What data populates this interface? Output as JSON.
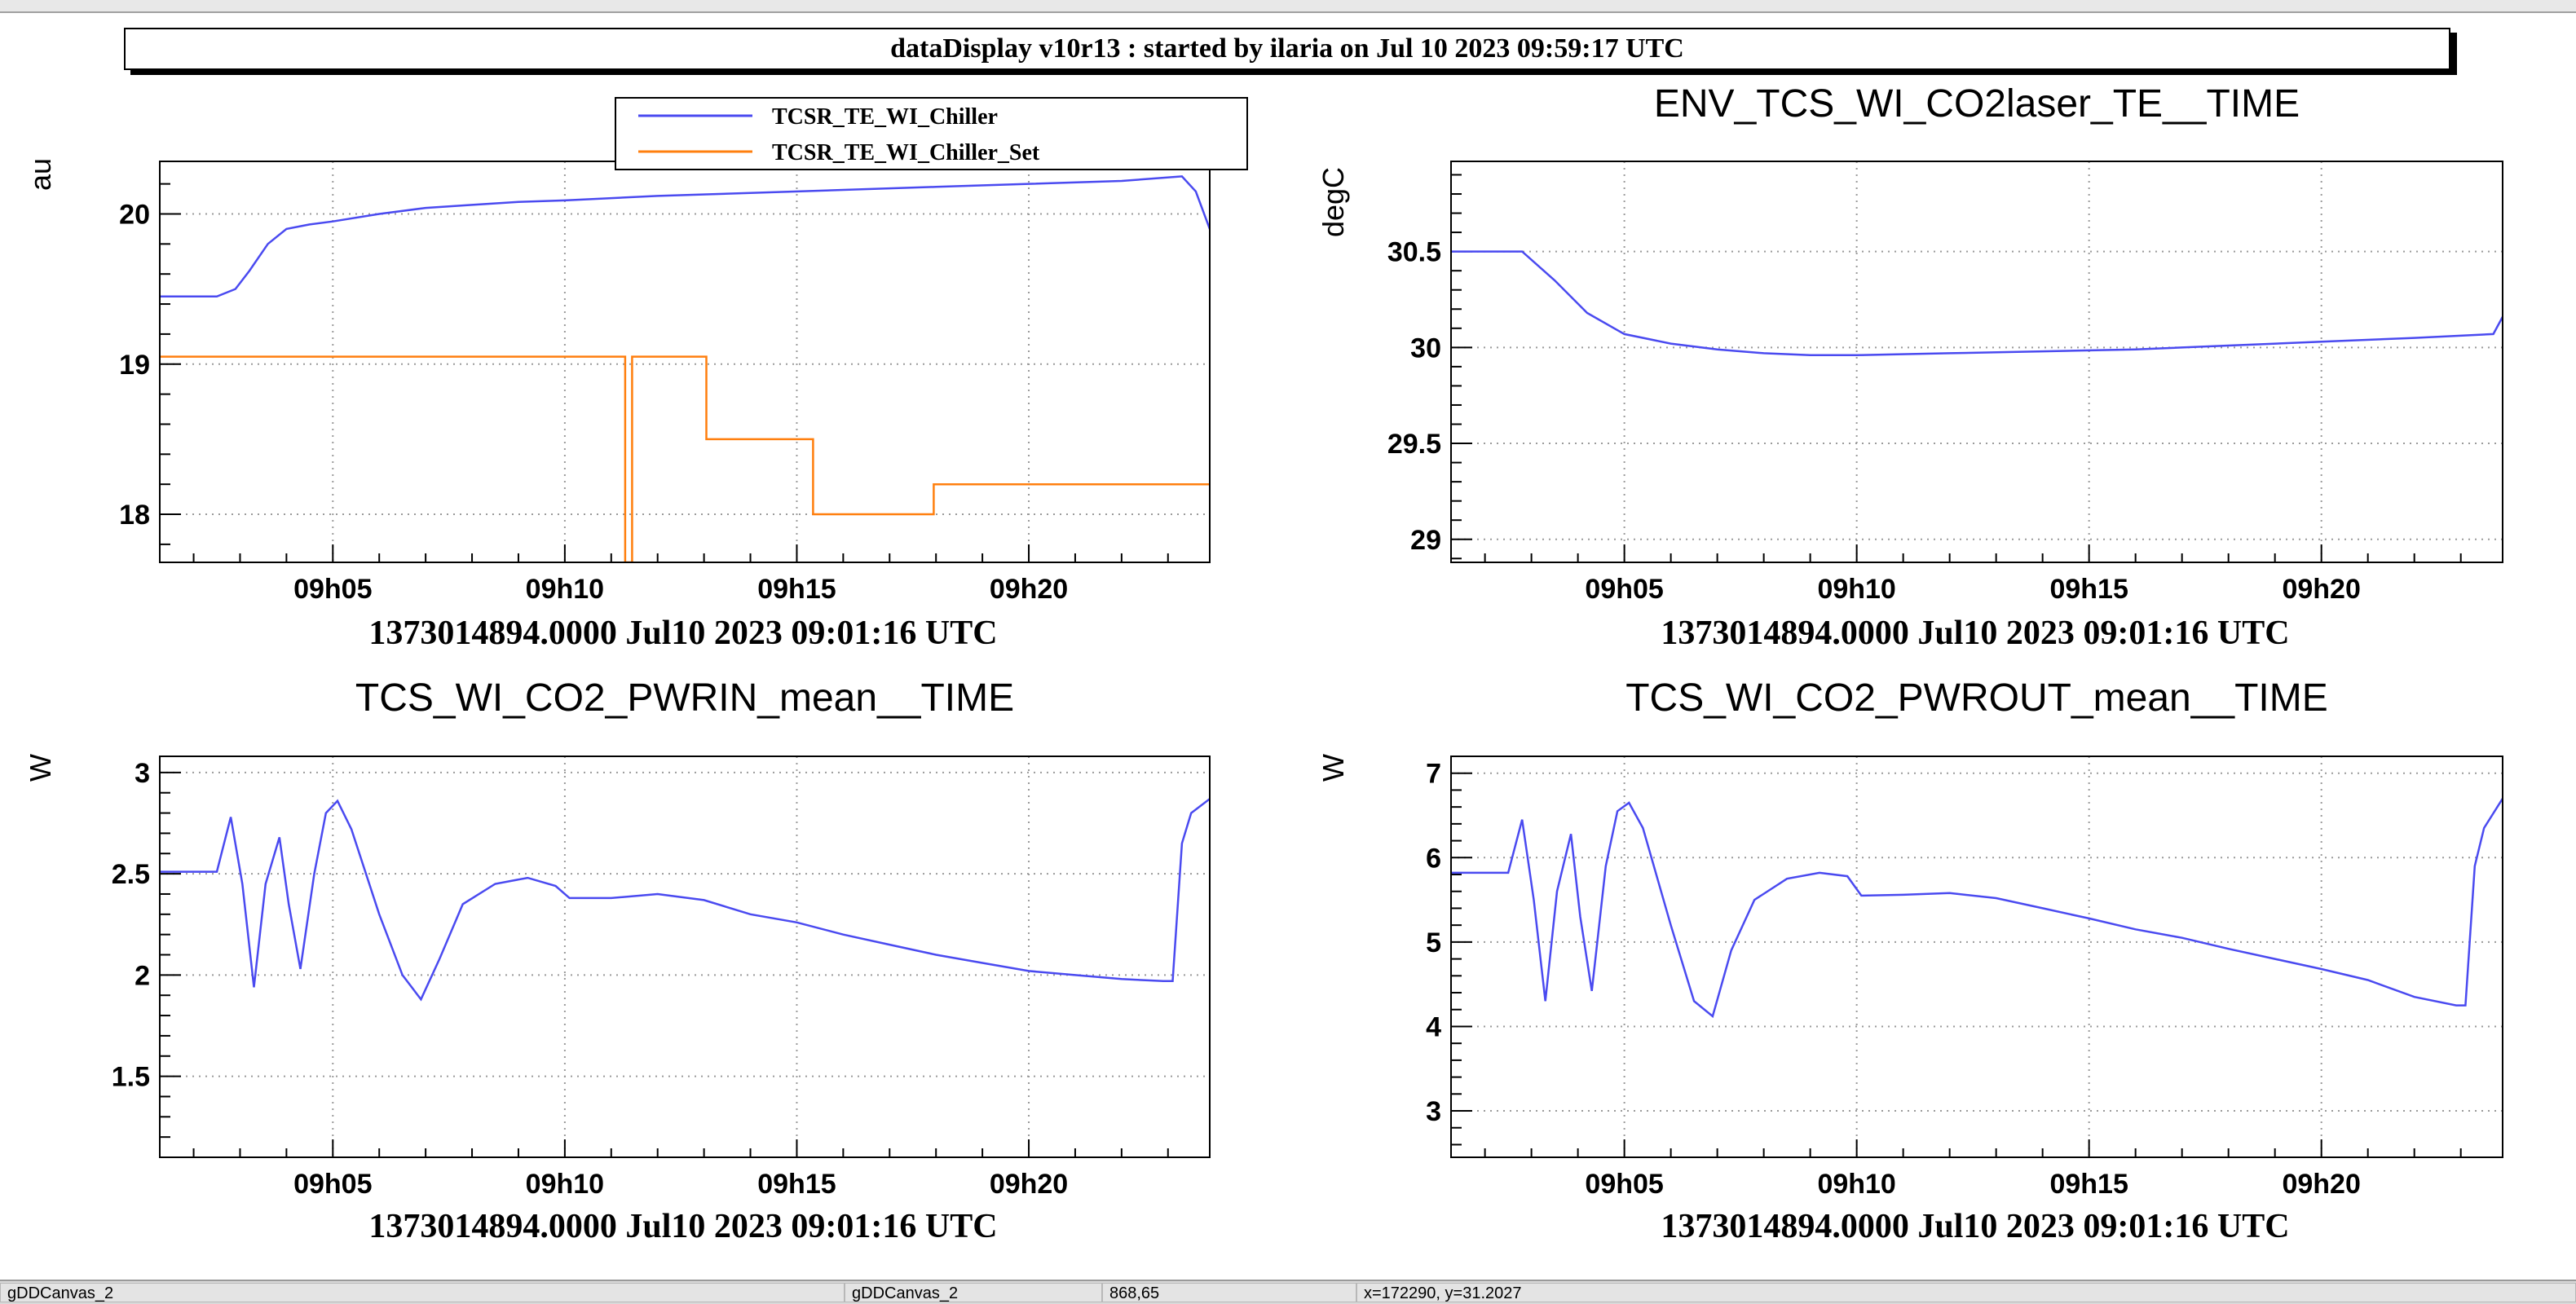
{
  "header": {
    "title": "dataDisplay v10r13 : started by ilaria on Jul 10 2023 09:59:17 UTC"
  },
  "chart_data": [
    {
      "type": "line",
      "title": "",
      "ylabel": "au",
      "xlabel": "1373014894.0000 Jul10 2023 09:01:16 UTC",
      "x_unit": "minute of 09h (UTC)",
      "xlim": [
        1.27,
        23.9
      ],
      "ylim": [
        17.68,
        20.35
      ],
      "x_ticks": [
        {
          "v": 5,
          "label": "09h05"
        },
        {
          "v": 10,
          "label": "09h10"
        },
        {
          "v": 15,
          "label": "09h15"
        },
        {
          "v": 20,
          "label": "09h20"
        }
      ],
      "y_ticks": [
        {
          "v": 18,
          "label": "18"
        },
        {
          "v": 19,
          "label": "19"
        },
        {
          "v": 20,
          "label": "20"
        }
      ],
      "grid": true,
      "legend_position": "top-right",
      "series": [
        {
          "name": "TCSR_TE_WI_Chiller",
          "color": "#4a4af0",
          "step": false,
          "x": [
            1.27,
            2.0,
            2.5,
            2.9,
            3.2,
            3.6,
            4.0,
            4.5,
            5.0,
            6.0,
            7.0,
            8.0,
            9.0,
            10.0,
            12.0,
            14.0,
            16.0,
            18.0,
            20.0,
            22.0,
            23.3,
            23.6,
            23.9
          ],
          "y": [
            19.45,
            19.45,
            19.45,
            19.5,
            19.62,
            19.8,
            19.9,
            19.93,
            19.95,
            20.0,
            20.04,
            20.06,
            20.08,
            20.09,
            20.12,
            20.14,
            20.16,
            20.18,
            20.2,
            20.22,
            20.25,
            20.15,
            19.9
          ]
        },
        {
          "name": "TCSR_TE_WI_Chiller_Set",
          "color": "#ff7f0e",
          "step": true,
          "x": [
            1.27,
            11.3,
            11.3,
            11.45,
            11.45,
            13.05,
            13.05,
            15.35,
            15.35,
            17.95,
            17.95,
            23.9
          ],
          "y": [
            19.05,
            19.05,
            17.68,
            17.68,
            19.05,
            19.05,
            18.5,
            18.5,
            18.0,
            18.0,
            18.2,
            18.2
          ]
        }
      ]
    },
    {
      "type": "line",
      "title": "ENV_TCS_WI_CO2laser_TE__TIME",
      "ylabel": "degC",
      "xlabel": "1373014894.0000 Jul10 2023 09:01:16 UTC",
      "x_unit": "minute of 09h (UTC)",
      "xlim": [
        1.27,
        23.9
      ],
      "ylim": [
        28.88,
        30.97
      ],
      "x_ticks": [
        {
          "v": 5,
          "label": "09h05"
        },
        {
          "v": 10,
          "label": "09h10"
        },
        {
          "v": 15,
          "label": "09h15"
        },
        {
          "v": 20,
          "label": "09h20"
        }
      ],
      "y_ticks": [
        {
          "v": 29,
          "label": "29"
        },
        {
          "v": 29.5,
          "label": "29.5"
        },
        {
          "v": 30,
          "label": "30"
        },
        {
          "v": 30.5,
          "label": "30.5"
        }
      ],
      "grid": true,
      "series": [
        {
          "name": "",
          "color": "#4a4af0",
          "step": false,
          "x": [
            1.27,
            2.8,
            3.5,
            4.2,
            5.0,
            6.0,
            7.0,
            8.0,
            9.0,
            10.0,
            12.0,
            14.0,
            16.0,
            18.0,
            20.0,
            22.0,
            23.7,
            23.9
          ],
          "y": [
            30.5,
            30.5,
            30.35,
            30.18,
            30.07,
            30.02,
            29.99,
            29.97,
            29.96,
            29.96,
            29.97,
            29.98,
            29.99,
            30.01,
            30.03,
            30.05,
            30.07,
            30.16
          ]
        }
      ]
    },
    {
      "type": "line",
      "title": "TCS_WI_CO2_PWRIN_mean__TIME",
      "ylabel": "W",
      "xlabel": "1373014894.0000 Jul10 2023 09:01:16 UTC",
      "x_unit": "minute of 09h (UTC)",
      "xlim": [
        1.27,
        23.9
      ],
      "ylim": [
        1.1,
        3.08
      ],
      "x_ticks": [
        {
          "v": 5,
          "label": "09h05"
        },
        {
          "v": 10,
          "label": "09h10"
        },
        {
          "v": 15,
          "label": "09h15"
        },
        {
          "v": 20,
          "label": "09h20"
        }
      ],
      "y_ticks": [
        {
          "v": 1.5,
          "label": "1.5"
        },
        {
          "v": 2,
          "label": "2"
        },
        {
          "v": 2.5,
          "label": "2.5"
        },
        {
          "v": 3,
          "label": "3"
        }
      ],
      "grid": true,
      "series": [
        {
          "name": "",
          "color": "#4a4af0",
          "step": false,
          "x": [
            1.27,
            2.5,
            2.8,
            3.05,
            3.3,
            3.55,
            3.85,
            4.05,
            4.3,
            4.6,
            4.85,
            5.1,
            5.4,
            6.0,
            6.5,
            6.9,
            7.3,
            7.8,
            8.5,
            9.2,
            9.8,
            10.1,
            11.0,
            12.0,
            13.0,
            14.0,
            15.0,
            16.0,
            17.0,
            18.0,
            19.0,
            20.0,
            21.0,
            22.0,
            22.9,
            23.1,
            23.3,
            23.5,
            23.9
          ],
          "y": [
            2.51,
            2.51,
            2.78,
            2.45,
            1.94,
            2.45,
            2.68,
            2.35,
            2.03,
            2.5,
            2.8,
            2.86,
            2.72,
            2.3,
            2.0,
            1.88,
            2.08,
            2.35,
            2.45,
            2.48,
            2.44,
            2.38,
            2.38,
            2.4,
            2.37,
            2.3,
            2.26,
            2.2,
            2.15,
            2.1,
            2.06,
            2.02,
            2.0,
            1.98,
            1.97,
            1.97,
            2.65,
            2.8,
            2.87
          ]
        }
      ]
    },
    {
      "type": "line",
      "title": "TCS_WI_CO2_PWROUT_mean__TIME",
      "ylabel": "W",
      "xlabel": "1373014894.0000 Jul10 2023 09:01:16 UTC",
      "x_unit": "minute of 09h (UTC)",
      "xlim": [
        1.27,
        23.9
      ],
      "ylim": [
        2.45,
        7.2
      ],
      "x_ticks": [
        {
          "v": 5,
          "label": "09h05"
        },
        {
          "v": 10,
          "label": "09h10"
        },
        {
          "v": 15,
          "label": "09h15"
        },
        {
          "v": 20,
          "label": "09h20"
        }
      ],
      "y_ticks": [
        {
          "v": 3,
          "label": "3"
        },
        {
          "v": 4,
          "label": "4"
        },
        {
          "v": 5,
          "label": "5"
        },
        {
          "v": 6,
          "label": "6"
        },
        {
          "v": 7,
          "label": "7"
        }
      ],
      "grid": true,
      "series": [
        {
          "name": "",
          "color": "#4a4af0",
          "step": false,
          "x": [
            1.27,
            2.5,
            2.8,
            3.05,
            3.3,
            3.55,
            3.85,
            4.05,
            4.3,
            4.6,
            4.85,
            5.1,
            5.4,
            6.0,
            6.5,
            6.9,
            7.3,
            7.8,
            8.5,
            9.2,
            9.8,
            10.1,
            11.0,
            12.0,
            13.0,
            14.0,
            15.0,
            16.0,
            17.0,
            18.0,
            19.0,
            20.0,
            21.0,
            22.0,
            22.9,
            23.1,
            23.3,
            23.5,
            23.9
          ],
          "y": [
            5.82,
            5.82,
            6.45,
            5.5,
            4.3,
            5.6,
            6.28,
            5.3,
            4.42,
            5.9,
            6.55,
            6.65,
            6.35,
            5.2,
            4.3,
            4.12,
            4.9,
            5.5,
            5.75,
            5.82,
            5.78,
            5.55,
            5.56,
            5.58,
            5.52,
            5.4,
            5.28,
            5.15,
            5.05,
            4.92,
            4.8,
            4.68,
            4.55,
            4.35,
            4.25,
            4.25,
            5.9,
            6.35,
            6.7
          ]
        }
      ]
    }
  ],
  "status_bar": {
    "canvas_name": "gDDCanvas_2",
    "canvas_name_2": "gDDCanvas_2",
    "cursor_px": "868,65",
    "cursor_value": "x=172290, y=31.2027"
  }
}
